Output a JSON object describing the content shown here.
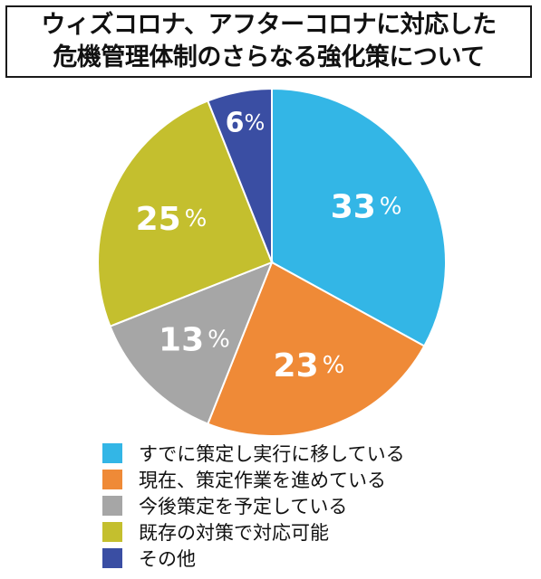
{
  "title": {
    "line1": "ウィズコロナ、アフターコロナに対応した",
    "line2": "危機管理体制のさらなる強化策について"
  },
  "chart_data": {
    "type": "pie",
    "unit": "%",
    "start_angle_deg": 0,
    "direction": "clockwise",
    "slices": [
      {
        "label": "すでに策定し実行に移している",
        "value": 33,
        "color": "#33b6e6"
      },
      {
        "label": "現在、策定作業を進めている",
        "value": 23,
        "color": "#ef8a37"
      },
      {
        "label": "今後策定を予定している",
        "value": 13,
        "color": "#a6a6a6"
      },
      {
        "label": "既存の対策で対応可能",
        "value": 25,
        "color": "#c4bf2e"
      },
      {
        "label": "その他",
        "value": 6,
        "color": "#3a4ea3"
      }
    ],
    "legend_position": "bottom"
  }
}
